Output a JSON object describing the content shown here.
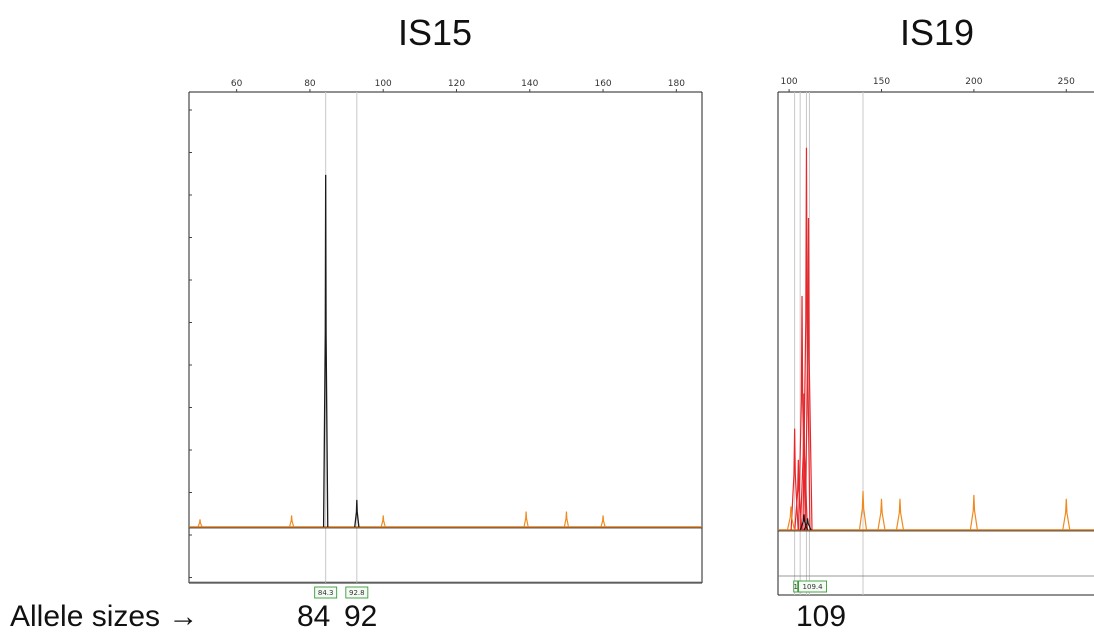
{
  "chart_data": [
    {
      "type": "line",
      "title": "IS15",
      "xlim": [
        47,
        187
      ],
      "x_ticks": [
        60,
        80,
        100,
        120,
        140,
        160,
        180
      ],
      "size_labels": [
        "84.3",
        "92.8"
      ],
      "allele_sizes": [
        "84",
        "92"
      ],
      "series": [
        {
          "color": "#1a1a1a",
          "peaks": [
            {
              "x": 84.3,
              "height": 0.91
            },
            {
              "x": 92.8,
              "height": 0.07
            }
          ]
        },
        {
          "color": "#f08a1e",
          "peaks": [
            {
              "x": 50,
              "height": 0.02
            },
            {
              "x": 75,
              "height": 0.03
            },
            {
              "x": 100,
              "height": 0.03
            },
            {
              "x": 139,
              "height": 0.04
            },
            {
              "x": 150,
              "height": 0.04
            },
            {
              "x": 160,
              "height": 0.03
            }
          ]
        }
      ]
    },
    {
      "type": "line",
      "title": "IS19",
      "xlim": [
        94,
        265
      ],
      "x_ticks": [
        100,
        150,
        200,
        250
      ],
      "size_labels": [
        "1",
        "1",
        "109.4"
      ],
      "allele_sizes": [
        "109"
      ],
      "series": [
        {
          "color": "#e8272b",
          "peaks": [
            {
              "x": 103,
              "height": 0.26
            },
            {
              "x": 105,
              "height": 0.18
            },
            {
              "x": 107,
              "height": 0.6
            },
            {
              "x": 108,
              "height": 0.35
            },
            {
              "x": 109.4,
              "height": 0.98
            },
            {
              "x": 110.5,
              "height": 0.8
            }
          ]
        },
        {
          "color": "#f08a1e",
          "peaks": [
            {
              "x": 101,
              "height": 0.06
            },
            {
              "x": 140,
              "height": 0.1
            },
            {
              "x": 150,
              "height": 0.08
            },
            {
              "x": 160,
              "height": 0.08
            },
            {
              "x": 200,
              "height": 0.09
            },
            {
              "x": 250,
              "height": 0.08
            }
          ]
        },
        {
          "color": "#1a1a1a",
          "peaks": [
            {
              "x": 108,
              "height": 0.04
            },
            {
              "x": 110,
              "height": 0.03
            }
          ]
        }
      ]
    }
  ],
  "caption": {
    "label": "Allele sizes →"
  }
}
